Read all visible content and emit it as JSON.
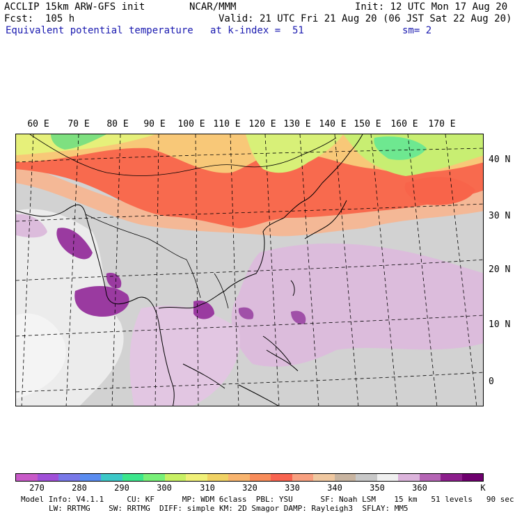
{
  "header": {
    "model": "ACCLIP 15km ARW-GFS init",
    "center": "NCAR/MMM",
    "init": "Init: 12 UTC Mon 17 Aug 20",
    "fcst": "Fcst:  105 h",
    "valid": "Valid: 21 UTC Fri 21 Aug 20 (06 JST Sat 22 Aug 20)",
    "field": "Equivalent potential temperature",
    "level": "at k-index =  51",
    "smooth": "sm= 2"
  },
  "map": {
    "lon_labels": [
      "60 E",
      "70 E",
      "80 E",
      "90 E",
      "100 E",
      "110 E",
      "120 E",
      "130 E",
      "140 E",
      "150 E",
      "160 E",
      "170 E"
    ],
    "lat_labels": [
      "40 N",
      "30 N",
      "20 N",
      "10 N",
      "0"
    ]
  },
  "colorbar": {
    "colors": [
      "#c85ac8",
      "#a050d8",
      "#7878e8",
      "#5a8cf0",
      "#3cc8c8",
      "#3ce68c",
      "#78f078",
      "#c8f064",
      "#f0f078",
      "#f0d264",
      "#f8b46e",
      "#f88c5a",
      "#f86450",
      "#f8a080",
      "#f0c8a0",
      "#c8b4a0",
      "#c8c8c8",
      "#f0f0f0",
      "#dcb4dc",
      "#b464b4",
      "#8c1e8c",
      "#6e006e"
    ],
    "ticks": [
      "270",
      "280",
      "290",
      "300",
      "310",
      "320",
      "330",
      "340",
      "350",
      "360"
    ],
    "unit": "K"
  },
  "footer": {
    "line1": "Model Info: V4.1.1     CU: KF      MP: WDM 6class  PBL: YSU      SF: Noah LSM    15 km   51 levels   90 sec",
    "line2": "LW: RRTMG    SW: RRTMG  DIFF: simple KM: 2D Smagor DAMP: Rayleigh3  SFLAY: MM5"
  }
}
